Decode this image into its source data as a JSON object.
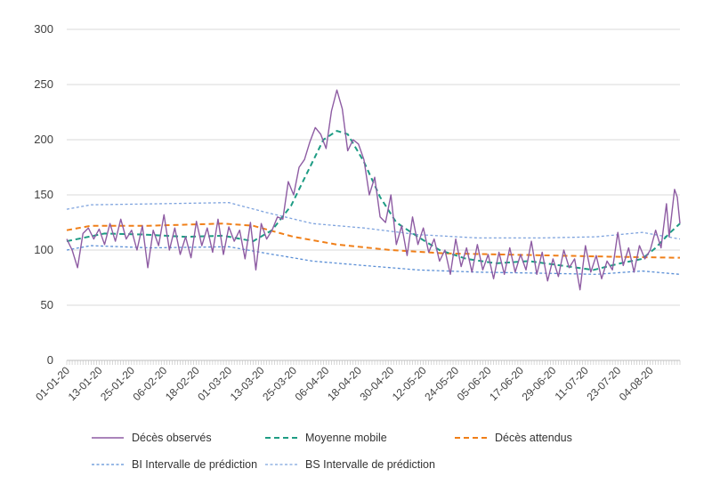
{
  "chart_data": {
    "type": "line",
    "title": "",
    "xlabel": "",
    "ylabel": "",
    "ylim": [
      0,
      300
    ],
    "yticks": [
      0,
      50,
      100,
      150,
      200,
      250,
      300
    ],
    "grid": "horizontal",
    "legend_position": "bottom",
    "x_tick_labels": [
      "01-01-20",
      "13-01-20",
      "25-01-20",
      "06-02-20",
      "18-02-20",
      "01-03-20",
      "13-03-20",
      "25-03-20",
      "06-04-20",
      "18-04-20",
      "30-04-20",
      "12-05-20",
      "24-05-20",
      "05-06-20",
      "17-06-20",
      "29-06-20",
      "11-07-20",
      "23-07-20",
      "04-08-20"
    ],
    "x_tick_dates": [
      "2020-01-01",
      "2020-01-13",
      "2020-01-25",
      "2020-02-06",
      "2020-02-18",
      "2020-03-01",
      "2020-03-13",
      "2020-03-25",
      "2020-04-06",
      "2020-04-18",
      "2020-04-30",
      "2020-05-12",
      "2020-05-24",
      "2020-06-05",
      "2020-06-17",
      "2020-06-29",
      "2020-07-11",
      "2020-07-23",
      "2020-08-04"
    ],
    "x_start": "2020-01-01",
    "x_end": "2020-08-15",
    "series": [
      {
        "name": "Décès observés",
        "color": "#8E5CA3",
        "style": "solid",
        "points": [
          [
            "2020-01-01",
            110
          ],
          [
            "2020-01-03",
            100
          ],
          [
            "2020-01-05",
            84
          ],
          [
            "2020-01-07",
            115
          ],
          [
            "2020-01-09",
            120
          ],
          [
            "2020-01-11",
            110
          ],
          [
            "2020-01-13",
            119
          ],
          [
            "2020-01-15",
            105
          ],
          [
            "2020-01-17",
            124
          ],
          [
            "2020-01-19",
            108
          ],
          [
            "2020-01-21",
            128
          ],
          [
            "2020-01-23",
            110
          ],
          [
            "2020-01-25",
            118
          ],
          [
            "2020-01-27",
            100
          ],
          [
            "2020-01-29",
            122
          ],
          [
            "2020-01-31",
            84
          ],
          [
            "2020-02-02",
            118
          ],
          [
            "2020-02-04",
            104
          ],
          [
            "2020-02-06",
            132
          ],
          [
            "2020-02-08",
            100
          ],
          [
            "2020-02-10",
            120
          ],
          [
            "2020-02-12",
            96
          ],
          [
            "2020-02-14",
            112
          ],
          [
            "2020-02-16",
            93
          ],
          [
            "2020-02-18",
            126
          ],
          [
            "2020-02-20",
            104
          ],
          [
            "2020-02-22",
            120
          ],
          [
            "2020-02-24",
            98
          ],
          [
            "2020-02-26",
            128
          ],
          [
            "2020-02-28",
            96
          ],
          [
            "2020-03-01",
            121
          ],
          [
            "2020-03-03",
            108
          ],
          [
            "2020-03-05",
            118
          ],
          [
            "2020-03-07",
            92
          ],
          [
            "2020-03-09",
            125
          ],
          [
            "2020-03-11",
            82
          ],
          [
            "2020-03-13",
            124
          ],
          [
            "2020-03-15",
            110
          ],
          [
            "2020-03-17",
            118
          ],
          [
            "2020-03-19",
            130
          ],
          [
            "2020-03-21",
            128
          ],
          [
            "2020-03-23",
            162
          ],
          [
            "2020-03-25",
            150
          ],
          [
            "2020-03-27",
            175
          ],
          [
            "2020-03-29",
            182
          ],
          [
            "2020-03-31",
            198
          ],
          [
            "2020-04-02",
            211
          ],
          [
            "2020-04-04",
            205
          ],
          [
            "2020-04-06",
            192
          ],
          [
            "2020-04-08",
            226
          ],
          [
            "2020-04-10",
            245
          ],
          [
            "2020-04-12",
            228
          ],
          [
            "2020-04-14",
            190
          ],
          [
            "2020-04-16",
            200
          ],
          [
            "2020-04-18",
            196
          ],
          [
            "2020-04-20",
            182
          ],
          [
            "2020-04-22",
            150
          ],
          [
            "2020-04-24",
            166
          ],
          [
            "2020-04-26",
            130
          ],
          [
            "2020-04-28",
            125
          ],
          [
            "2020-04-30",
            150
          ],
          [
            "2020-05-02",
            105
          ],
          [
            "2020-05-04",
            122
          ],
          [
            "2020-05-06",
            95
          ],
          [
            "2020-05-08",
            130
          ],
          [
            "2020-05-10",
            105
          ],
          [
            "2020-05-12",
            120
          ],
          [
            "2020-05-14",
            98
          ],
          [
            "2020-05-16",
            110
          ],
          [
            "2020-05-18",
            90
          ],
          [
            "2020-05-20",
            100
          ],
          [
            "2020-05-22",
            78
          ],
          [
            "2020-05-24",
            110
          ],
          [
            "2020-05-26",
            85
          ],
          [
            "2020-05-28",
            102
          ],
          [
            "2020-05-30",
            80
          ],
          [
            "2020-06-01",
            105
          ],
          [
            "2020-06-03",
            82
          ],
          [
            "2020-06-05",
            96
          ],
          [
            "2020-06-07",
            74
          ],
          [
            "2020-06-09",
            98
          ],
          [
            "2020-06-11",
            78
          ],
          [
            "2020-06-13",
            102
          ],
          [
            "2020-06-15",
            80
          ],
          [
            "2020-06-17",
            96
          ],
          [
            "2020-06-19",
            82
          ],
          [
            "2020-06-21",
            108
          ],
          [
            "2020-06-23",
            78
          ],
          [
            "2020-06-25",
            98
          ],
          [
            "2020-06-27",
            72
          ],
          [
            "2020-06-29",
            92
          ],
          [
            "2020-07-01",
            76
          ],
          [
            "2020-07-03",
            100
          ],
          [
            "2020-07-05",
            84
          ],
          [
            "2020-07-07",
            92
          ],
          [
            "2020-07-09",
            64
          ],
          [
            "2020-07-11",
            104
          ],
          [
            "2020-07-13",
            80
          ],
          [
            "2020-07-15",
            95
          ],
          [
            "2020-07-17",
            74
          ],
          [
            "2020-07-19",
            90
          ],
          [
            "2020-07-21",
            82
          ],
          [
            "2020-07-23",
            116
          ],
          [
            "2020-07-25",
            86
          ],
          [
            "2020-07-27",
            102
          ],
          [
            "2020-07-29",
            80
          ],
          [
            "2020-07-31",
            104
          ],
          [
            "2020-08-02",
            92
          ],
          [
            "2020-08-04",
            100
          ],
          [
            "2020-08-06",
            118
          ],
          [
            "2020-08-08",
            102
          ],
          [
            "2020-08-10",
            142
          ],
          [
            "2020-08-11",
            112
          ],
          [
            "2020-08-13",
            155
          ],
          [
            "2020-08-14",
            148
          ],
          [
            "2020-08-15",
            124
          ]
        ]
      },
      {
        "name": "Moyenne mobile",
        "color": "#1E9C84",
        "style": "dashed",
        "points": [
          [
            "2020-01-01",
            108
          ],
          [
            "2020-01-15",
            115
          ],
          [
            "2020-01-30",
            114
          ],
          [
            "2020-02-14",
            112
          ],
          [
            "2020-02-28",
            113
          ],
          [
            "2020-03-10",
            108
          ],
          [
            "2020-03-17",
            118
          ],
          [
            "2020-03-24",
            140
          ],
          [
            "2020-03-31",
            175
          ],
          [
            "2020-04-05",
            200
          ],
          [
            "2020-04-10",
            208
          ],
          [
            "2020-04-14",
            205
          ],
          [
            "2020-04-20",
            180
          ],
          [
            "2020-04-26",
            148
          ],
          [
            "2020-05-02",
            125
          ],
          [
            "2020-05-10",
            112
          ],
          [
            "2020-05-18",
            100
          ],
          [
            "2020-05-28",
            92
          ],
          [
            "2020-06-08",
            88
          ],
          [
            "2020-06-20",
            90
          ],
          [
            "2020-07-02",
            86
          ],
          [
            "2020-07-14",
            82
          ],
          [
            "2020-07-24",
            88
          ],
          [
            "2020-08-01",
            92
          ],
          [
            "2020-08-06",
            102
          ],
          [
            "2020-08-11",
            115
          ],
          [
            "2020-08-15",
            124
          ]
        ]
      },
      {
        "name": "Décès attendus",
        "color": "#F07F18",
        "style": "dashed",
        "points": [
          [
            "2020-01-01",
            118
          ],
          [
            "2020-01-10",
            122
          ],
          [
            "2020-01-31",
            122
          ],
          [
            "2020-02-28",
            124
          ],
          [
            "2020-03-10",
            122
          ],
          [
            "2020-03-25",
            112
          ],
          [
            "2020-04-10",
            105
          ],
          [
            "2020-04-30",
            100
          ],
          [
            "2020-05-20",
            97
          ],
          [
            "2020-06-10",
            96
          ],
          [
            "2020-06-30",
            95
          ],
          [
            "2020-07-20",
            94
          ],
          [
            "2020-08-15",
            93
          ]
        ]
      },
      {
        "name": "BI Intervalle de prédiction",
        "color": "#5B8FD6",
        "style": "dotted",
        "points": [
          [
            "2020-01-01",
            100
          ],
          [
            "2020-01-10",
            104
          ],
          [
            "2020-02-01",
            102
          ],
          [
            "2020-03-01",
            103
          ],
          [
            "2020-03-15",
            97
          ],
          [
            "2020-04-01",
            90
          ],
          [
            "2020-04-20",
            86
          ],
          [
            "2020-05-10",
            82
          ],
          [
            "2020-06-01",
            80
          ],
          [
            "2020-06-25",
            79
          ],
          [
            "2020-07-15",
            78
          ],
          [
            "2020-08-01",
            81
          ],
          [
            "2020-08-15",
            78
          ]
        ]
      },
      {
        "name": "BS Intervalle de prédiction",
        "color": "#7EA3DE",
        "style": "dotted",
        "points": [
          [
            "2020-01-01",
            137
          ],
          [
            "2020-01-10",
            141
          ],
          [
            "2020-02-05",
            142
          ],
          [
            "2020-03-01",
            143
          ],
          [
            "2020-03-15",
            134
          ],
          [
            "2020-04-01",
            124
          ],
          [
            "2020-04-20",
            120
          ],
          [
            "2020-05-10",
            114
          ],
          [
            "2020-06-01",
            111
          ],
          [
            "2020-06-25",
            111
          ],
          [
            "2020-07-15",
            112
          ],
          [
            "2020-08-01",
            116
          ],
          [
            "2020-08-15",
            110
          ]
        ]
      }
    ]
  }
}
